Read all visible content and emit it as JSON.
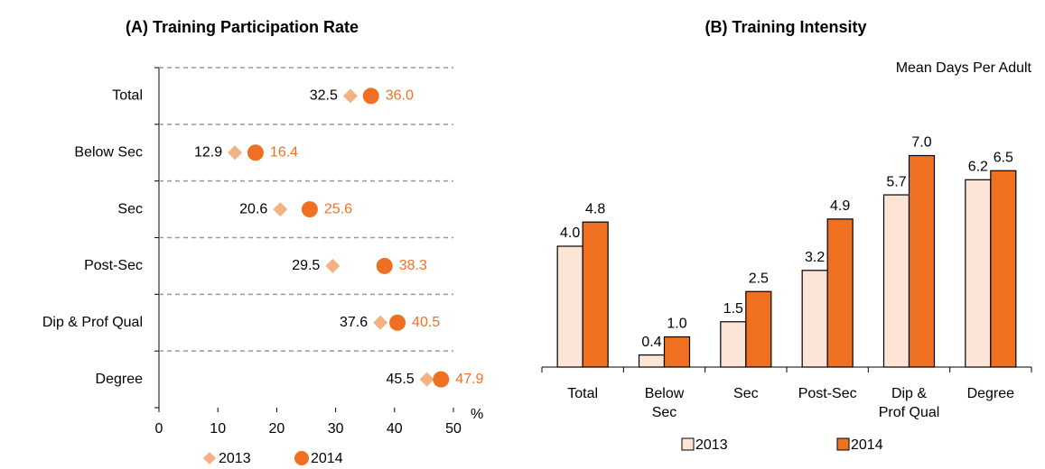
{
  "chart_data": [
    {
      "type": "dot",
      "title": "(A) Training Participation Rate",
      "categories": [
        "Total",
        "Below Sec",
        "Sec",
        "Post-Sec",
        "Dip & Prof Qual",
        "Degree"
      ],
      "series": [
        {
          "name": "2013",
          "color": "#f4b183",
          "marker": "diamond",
          "values": [
            32.5,
            12.9,
            20.6,
            29.5,
            37.6,
            45.5
          ]
        },
        {
          "name": "2014",
          "color": "#f07022",
          "marker": "circle",
          "values": [
            36.0,
            16.4,
            25.6,
            38.3,
            40.5,
            47.9
          ],
          "value_labels": [
            "36.0",
            "16.4",
            "25.6",
            "38.3",
            "40.5",
            "47.9"
          ]
        }
      ],
      "x_label": "%",
      "xlim": [
        0,
        50
      ],
      "xticks": [
        0,
        10,
        20,
        30,
        40,
        50
      ],
      "grid": true,
      "legend": "bottom"
    },
    {
      "type": "bar",
      "title": "(B) Training Intensity",
      "y_label": "Mean Days Per Adult",
      "categories": [
        "Total",
        "Below Sec",
        "Sec",
        "Post-Sec",
        "Dip & Prof Qual",
        "Degree"
      ],
      "series": [
        {
          "name": "2013",
          "color": "#fce4d6",
          "values": [
            4.0,
            0.4,
            1.5,
            3.2,
            5.7,
            6.2
          ],
          "value_labels": [
            "4.0",
            "0.4",
            "1.5",
            "3.2",
            "5.7",
            "6.2"
          ]
        },
        {
          "name": "2014",
          "color": "#f07022",
          "values": [
            4.8,
            1.0,
            2.5,
            4.9,
            7.0,
            6.5
          ],
          "value_labels": [
            "4.8",
            "1.0",
            "2.5",
            "4.9",
            "7.0",
            "6.5"
          ]
        }
      ],
      "ylim": [
        0,
        8
      ],
      "legend": "bottom"
    }
  ]
}
